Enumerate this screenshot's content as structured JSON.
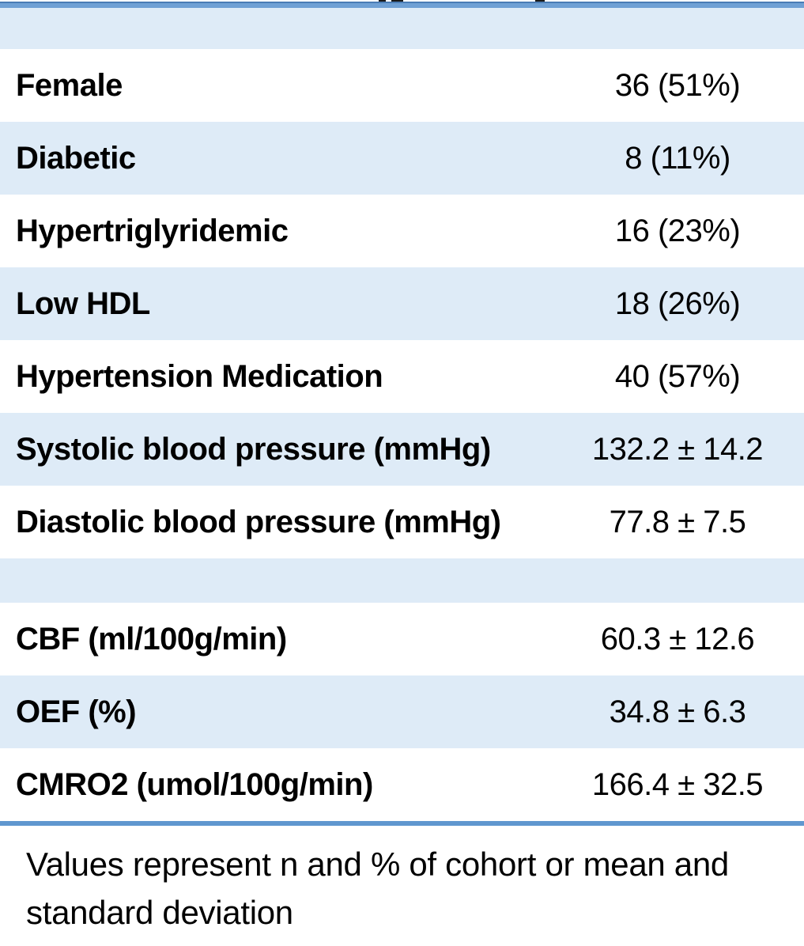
{
  "table": {
    "rows": [
      {
        "type": "header",
        "label": "",
        "value": "",
        "shaded": true
      },
      {
        "type": "data",
        "label": "Female",
        "value": "36 (51%)",
        "shaded": false
      },
      {
        "type": "data",
        "label": "Diabetic",
        "value": "8 (11%)",
        "shaded": true
      },
      {
        "type": "data",
        "label": "Hypertriglyridemic",
        "value": "16 (23%)",
        "shaded": false
      },
      {
        "type": "data",
        "label": "Low HDL",
        "value": "18 (26%)",
        "shaded": true
      },
      {
        "type": "data",
        "label": "Hypertension Medication",
        "value": "40 (57%)",
        "shaded": false
      },
      {
        "type": "data",
        "label": "Systolic blood pressure (mmHg)",
        "value": "132.2 ± 14.2",
        "shaded": true
      },
      {
        "type": "data",
        "label": "Diastolic blood pressure (mmHg)",
        "value": "77.8 ± 7.5",
        "shaded": false
      },
      {
        "type": "spacer",
        "label": "",
        "value": "",
        "shaded": true
      },
      {
        "type": "data",
        "label": "CBF (ml/100g/min)",
        "value": "60.3 ± 12.6",
        "shaded": false
      },
      {
        "type": "data",
        "label": "OEF (%)",
        "value": "34.8 ± 6.3",
        "shaded": true
      },
      {
        "type": "data",
        "label": "CMRO2 (umol/100g/min)",
        "value": "166.4 ± 32.5",
        "shaded": false
      }
    ],
    "footnote": "Values represent n and % of cohort or mean and standard deviation"
  },
  "colors": {
    "row_shading": "#deebf7",
    "border_blue": "#6097cf",
    "border_blue_dark": "#4a7cb5",
    "text": "#000000"
  }
}
